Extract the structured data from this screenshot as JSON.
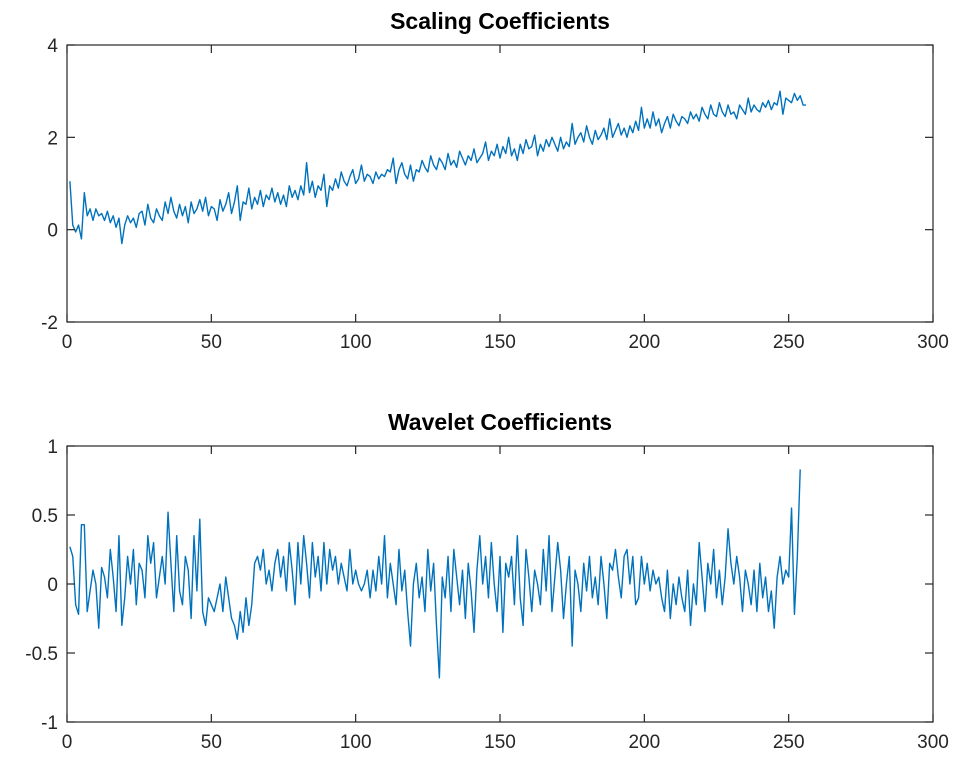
{
  "style": {
    "line_color": "#0072BD",
    "axis_color": "#262626",
    "background": "#FFFFFF"
  },
  "chart_data": [
    {
      "type": "line",
      "title": "Scaling Coefficients",
      "xlabel": "",
      "ylabel": "",
      "xlim": [
        0,
        300
      ],
      "ylim": [
        -2,
        4
      ],
      "xticks": [
        0,
        50,
        100,
        150,
        200,
        250,
        300
      ],
      "yticks": [
        -2,
        0,
        2,
        4
      ],
      "xtick_labels": [
        "0",
        "50",
        "100",
        "150",
        "200",
        "250",
        "300"
      ],
      "ytick_labels": [
        "-2",
        "0",
        "2",
        "4"
      ],
      "grid": false,
      "series": [
        {
          "x_start": 1,
          "x_step": 1,
          "values": [
            1.05,
            0.1,
            -0.05,
            0.1,
            -0.2,
            0.8,
            0.3,
            0.45,
            0.2,
            0.45,
            0.3,
            0.35,
            0.2,
            0.4,
            0.15,
            0.3,
            0.05,
            0.25,
            -0.3,
            0.1,
            0.3,
            0.15,
            0.25,
            0.05,
            0.35,
            0.4,
            0.1,
            0.55,
            0.25,
            0.15,
            0.45,
            0.3,
            0.2,
            0.6,
            0.35,
            0.7,
            0.4,
            0.25,
            0.55,
            0.3,
            0.5,
            0.15,
            0.6,
            0.35,
            0.45,
            0.65,
            0.4,
            0.7,
            0.3,
            0.5,
            0.45,
            0.2,
            0.65,
            0.4,
            0.55,
            0.8,
            0.35,
            0.6,
            0.95,
            0.2,
            0.6,
            0.55,
            0.9,
            0.45,
            0.7,
            0.55,
            0.85,
            0.5,
            0.75,
            0.65,
            0.9,
            0.6,
            0.8,
            0.55,
            0.75,
            0.5,
            0.95,
            0.7,
            0.85,
            0.65,
            0.95,
            0.75,
            1.45,
            0.8,
            1.05,
            0.7,
            0.95,
            0.85,
            1.2,
            0.5,
            0.95,
            0.85,
            1.1,
            0.9,
            1.25,
            1.05,
            0.95,
            1.15,
            1.3,
            1.0,
            1.1,
            1.4,
            1.05,
            1.2,
            1.15,
            1.0,
            1.25,
            1.1,
            1.2,
            1.15,
            1.3,
            1.25,
            1.55,
            1.0,
            1.3,
            1.45,
            1.2,
            1.1,
            1.4,
            1.05,
            1.3,
            1.25,
            1.5,
            1.35,
            1.25,
            1.6,
            1.4,
            1.3,
            1.55,
            1.45,
            1.3,
            1.65,
            1.4,
            1.5,
            1.35,
            1.7,
            1.55,
            1.4,
            1.6,
            1.5,
            1.75,
            1.45,
            1.55,
            1.65,
            1.9,
            1.5,
            1.7,
            1.6,
            1.85,
            1.55,
            1.8,
            1.65,
            2.0,
            1.6,
            1.75,
            1.5,
            1.85,
            1.65,
            1.95,
            1.75,
            1.8,
            2.05,
            1.6,
            1.85,
            1.7,
            1.95,
            1.8,
            2.0,
            1.85,
            1.7,
            2.0,
            1.75,
            1.9,
            1.8,
            2.3,
            1.85,
            2.0,
            2.1,
            1.9,
            2.25,
            2.0,
            1.85,
            2.15,
            1.95,
            2.05,
            2.2,
            1.95,
            2.4,
            2.0,
            2.15,
            2.3,
            2.05,
            2.2,
            2.0,
            2.25,
            2.1,
            2.35,
            2.15,
            2.65,
            2.2,
            2.4,
            2.2,
            2.55,
            2.25,
            2.4,
            2.1,
            2.3,
            2.45,
            2.2,
            2.5,
            2.35,
            2.25,
            2.45,
            2.4,
            2.3,
            2.55,
            2.4,
            2.5,
            2.35,
            2.65,
            2.5,
            2.4,
            2.7,
            2.5,
            2.45,
            2.75,
            2.55,
            2.45,
            2.7,
            2.5,
            2.55,
            2.4,
            2.7,
            2.6,
            2.5,
            2.85,
            2.55,
            2.7,
            2.6,
            2.55,
            2.75,
            2.65,
            2.8,
            2.6,
            2.75,
            2.7,
            3.0,
            2.5,
            2.85,
            2.8,
            2.75,
            2.95,
            2.8,
            2.9,
            2.7,
            2.7
          ]
        }
      ]
    },
    {
      "type": "line",
      "title": "Wavelet Coefficients",
      "xlabel": "",
      "ylabel": "",
      "xlim": [
        0,
        300
      ],
      "ylim": [
        -1,
        1
      ],
      "xticks": [
        0,
        50,
        100,
        150,
        200,
        250,
        300
      ],
      "yticks": [
        -1,
        -0.5,
        0,
        0.5,
        1
      ],
      "xtick_labels": [
        "0",
        "50",
        "100",
        "150",
        "200",
        "250",
        "300"
      ],
      "ytick_labels": [
        "-1",
        "-0.5",
        "0",
        "0.5",
        "1"
      ],
      "grid": false,
      "series": [
        {
          "x_start": 1,
          "x_step": 1,
          "values": [
            0.27,
            0.2,
            -0.15,
            -0.22,
            0.43,
            0.43,
            -0.2,
            -0.05,
            0.1,
            0.0,
            -0.32,
            0.12,
            0.05,
            -0.1,
            0.25,
            0.05,
            -0.2,
            0.35,
            -0.3,
            -0.1,
            0.2,
            0.0,
            0.25,
            -0.15,
            0.15,
            0.1,
            -0.1,
            0.35,
            0.15,
            0.3,
            -0.1,
            0.05,
            0.2,
            0.0,
            0.52,
            0.15,
            -0.2,
            0.35,
            -0.05,
            -0.15,
            0.2,
            0.1,
            -0.25,
            0.35,
            -0.05,
            0.47,
            -0.2,
            -0.3,
            -0.1,
            -0.15,
            -0.2,
            -0.1,
            0.0,
            -0.2,
            0.05,
            -0.1,
            -0.25,
            -0.3,
            -0.4,
            -0.2,
            -0.35,
            -0.1,
            -0.3,
            -0.15,
            0.15,
            0.2,
            0.1,
            0.25,
            0.0,
            0.1,
            -0.05,
            0.15,
            0.25,
            0.05,
            0.2,
            -0.05,
            0.3,
            0.1,
            -0.15,
            0.3,
            0.0,
            0.35,
            0.15,
            -0.1,
            0.3,
            0.05,
            0.2,
            -0.05,
            0.3,
            0.0,
            0.25,
            0.1,
            0.2,
            0.0,
            0.15,
            0.05,
            -0.05,
            0.25,
            0.0,
            0.1,
            0.0,
            -0.05,
            0.0,
            0.1,
            -0.1,
            0.1,
            -0.05,
            0.2,
            0.0,
            0.35,
            -0.1,
            0.15,
            0.0,
            -0.15,
            0.25,
            -0.05,
            0.1,
            -0.2,
            -0.45,
            0.0,
            0.15,
            -0.1,
            0.05,
            -0.2,
            0.25,
            -0.05,
            0.15,
            -0.3,
            -0.68,
            0.05,
            -0.1,
            0.2,
            -0.2,
            0.25,
            0.05,
            -0.15,
            0.1,
            -0.25,
            0.15,
            -0.05,
            -0.35,
            0.1,
            0.35,
            0.0,
            0.2,
            -0.1,
            0.3,
            0.0,
            -0.2,
            0.2,
            -0.35,
            0.15,
            0.05,
            0.2,
            -0.15,
            0.35,
            -0.1,
            -0.3,
            0.25,
            0.05,
            -0.2,
            0.1,
            0.0,
            -0.15,
            0.25,
            -0.05,
            0.35,
            -0.2,
            0.05,
            0.3,
            0.1,
            -0.25,
            0.0,
            0.2,
            -0.45,
            0.1,
            0.0,
            -0.2,
            0.15,
            -0.05,
            0.2,
            -0.1,
            0.05,
            -0.15,
            0.2,
            0.0,
            -0.25,
            0.15,
            0.1,
            0.25,
            0.05,
            -0.1,
            0.2,
            0.25,
            0.0,
            0.2,
            -0.15,
            -0.1,
            0.2,
            0.0,
            0.15,
            -0.05,
            0.1,
            0.0,
            0.05,
            -0.1,
            -0.2,
            0.1,
            -0.25,
            0.0,
            -0.15,
            0.05,
            -0.1,
            -0.2,
            0.1,
            -0.3,
            0.0,
            -0.15,
            0.3,
            0.05,
            -0.2,
            0.15,
            0.0,
            0.25,
            -0.1,
            0.1,
            -0.15,
            0.05,
            0.4,
            0.15,
            0.0,
            0.2,
            0.05,
            -0.2,
            0.1,
            0.0,
            -0.15,
            0.1,
            -0.2,
            0.15,
            -0.1,
            0.05,
            -0.2,
            -0.05,
            -0.32,
            0.05,
            0.2,
            0.0,
            0.1,
            0.05,
            0.55,
            -0.22,
            0.2,
            0.83
          ]
        }
      ]
    }
  ]
}
